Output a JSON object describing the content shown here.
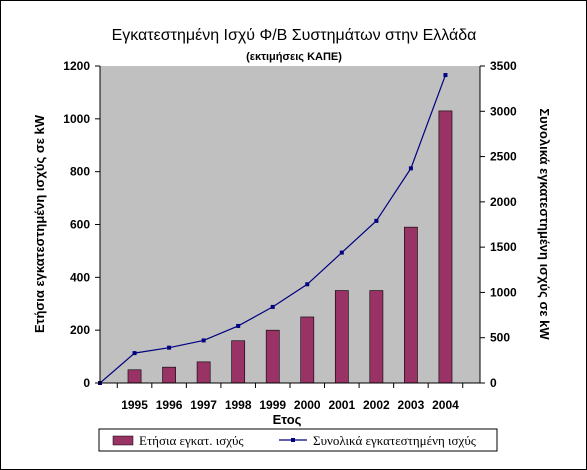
{
  "chart_data": {
    "type": "bar",
    "title": "Εγκατεστημένη Ισχύ Φ/Β Συστημάτων στην Ελλάδα",
    "subtitle": "(εκτιμήσεις ΚΑΠΕ)",
    "xlabel": "Ετος",
    "ylabel_left": "Ετήσια εγκατεστημένη ισχύς σε kW",
    "ylabel_right": "Συνολικά εγκατεστημένη ισχύς σε kW",
    "categories": [
      "1995",
      "1996",
      "1997",
      "1998",
      "1999",
      "2000",
      "2001",
      "2002",
      "2003",
      "2004"
    ],
    "ylim_left": [
      0,
      1200
    ],
    "yticks_left": [
      "0",
      "200",
      "400",
      "600",
      "800",
      "1000",
      "1200"
    ],
    "ylim_right": [
      0,
      3500
    ],
    "yticks_right": [
      "0",
      "500",
      "1000",
      "1500",
      "2000",
      "2500",
      "3000",
      "3500"
    ],
    "grid": false,
    "plot_background": "#C0C0C0",
    "legend_position": "bottom",
    "series": [
      {
        "name": "Ετήσια εγκατ. ισχύς",
        "type": "bar",
        "axis": "left",
        "color": "#993366",
        "values": [
          50,
          60,
          80,
          160,
          200,
          250,
          350,
          350,
          590,
          1030
        ]
      },
      {
        "name": "Συνολικά εγκατεστημένη ισχύς",
        "type": "line",
        "axis": "right",
        "color": "#000080",
        "x": [
          "",
          "1995",
          "1996",
          "1997",
          "1998",
          "1999",
          "2000",
          "2001",
          "2002",
          "2003",
          "2004"
        ],
        "values": [
          0,
          330,
          390,
          470,
          630,
          840,
          1090,
          1440,
          1790,
          2370,
          3400
        ]
      }
    ]
  }
}
